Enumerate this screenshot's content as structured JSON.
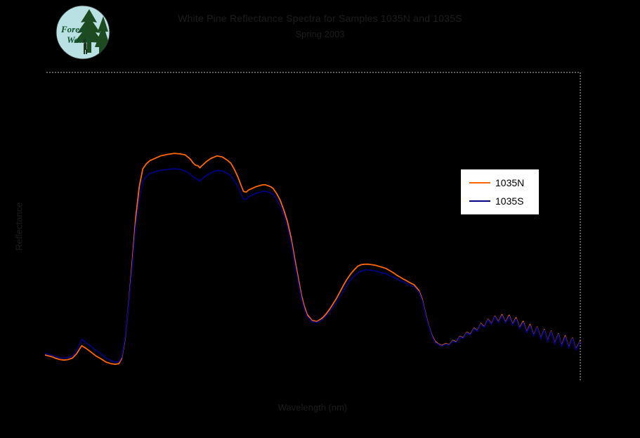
{
  "page": {
    "background_color": "#000000"
  },
  "logo": {
    "text_line1": "Forest",
    "text_line2": "Watch",
    "circle_color": "#b9e0e2",
    "tree_color": "#1d4a21",
    "figure_color": "#20331f",
    "text_color": "#14532d"
  },
  "title": {
    "line1": "White Pine Reflectance Spectra for Samples 1035N and 1035S",
    "line2": "Spring 2003",
    "text_color": "#1c1c1c"
  },
  "axes": {
    "x_label": "Wavelength (nm)",
    "y_label": "Reflectance",
    "label_color": "#1c1c1c",
    "border_color": "#b8b8b8"
  },
  "legend": {
    "background": "#ffffff",
    "border_color": "#000000",
    "entries": [
      {
        "label": "1035N",
        "color": "#ff6600"
      },
      {
        "label": "1035S",
        "color": "#000080"
      }
    ]
  },
  "chart_data": {
    "type": "line",
    "title": "White Pine Reflectance Spectra for Samples 1035N and 1035S",
    "subtitle": "Spring 2003",
    "xlabel": "Wavelength (nm)",
    "ylabel": "Reflectance",
    "x_range": [
      400,
      2500
    ],
    "y_range": [
      0,
      0.6
    ],
    "grid": false,
    "legend_position": "right-center",
    "series": [
      {
        "name": "1035N",
        "color": "#ff6600",
        "points": [
          [
            400,
            0.052
          ],
          [
            415,
            0.05
          ],
          [
            430,
            0.048
          ],
          [
            445,
            0.045
          ],
          [
            460,
            0.043
          ],
          [
            475,
            0.042
          ],
          [
            490,
            0.043
          ],
          [
            508,
            0.046
          ],
          [
            525,
            0.055
          ],
          [
            544,
            0.07
          ],
          [
            560,
            0.065
          ],
          [
            577,
            0.059
          ],
          [
            600,
            0.05
          ],
          [
            618,
            0.045
          ],
          [
            640,
            0.038
          ],
          [
            660,
            0.035
          ],
          [
            675,
            0.034
          ],
          [
            690,
            0.035
          ],
          [
            701,
            0.045
          ],
          [
            715,
            0.086
          ],
          [
            729,
            0.154
          ],
          [
            743,
            0.236
          ],
          [
            756,
            0.318
          ],
          [
            770,
            0.379
          ],
          [
            784,
            0.413
          ],
          [
            798,
            0.423
          ],
          [
            812,
            0.429
          ],
          [
            853,
            0.438
          ],
          [
            880,
            0.441
          ],
          [
            908,
            0.443
          ],
          [
            930,
            0.442
          ],
          [
            950,
            0.44
          ],
          [
            970,
            0.432
          ],
          [
            980,
            0.425
          ],
          [
            991,
            0.42
          ],
          [
            1000,
            0.419
          ],
          [
            1008,
            0.415
          ],
          [
            1013,
            0.418
          ],
          [
            1020,
            0.421
          ],
          [
            1033,
            0.427
          ],
          [
            1050,
            0.433
          ],
          [
            1074,
            0.438
          ],
          [
            1096,
            0.436
          ],
          [
            1115,
            0.43
          ],
          [
            1129,
            0.424
          ],
          [
            1143,
            0.412
          ],
          [
            1157,
            0.397
          ],
          [
            1170,
            0.38
          ],
          [
            1179,
            0.369
          ],
          [
            1190,
            0.368
          ],
          [
            1199,
            0.372
          ],
          [
            1213,
            0.375
          ],
          [
            1226,
            0.378
          ],
          [
            1240,
            0.38
          ],
          [
            1254,
            0.382
          ],
          [
            1265,
            0.382
          ],
          [
            1276,
            0.38
          ],
          [
            1286,
            0.378
          ],
          [
            1295,
            0.375
          ],
          [
            1309,
            0.365
          ],
          [
            1323,
            0.352
          ],
          [
            1337,
            0.333
          ],
          [
            1351,
            0.311
          ],
          [
            1365,
            0.28
          ],
          [
            1378,
            0.243
          ],
          [
            1392,
            0.205
          ],
          [
            1406,
            0.168
          ],
          [
            1417,
            0.147
          ],
          [
            1428,
            0.131
          ],
          [
            1447,
            0.119
          ],
          [
            1467,
            0.117
          ],
          [
            1489,
            0.124
          ],
          [
            1502,
            0.131
          ],
          [
            1516,
            0.14
          ],
          [
            1530,
            0.151
          ],
          [
            1544,
            0.162
          ],
          [
            1558,
            0.175
          ],
          [
            1572,
            0.188
          ],
          [
            1585,
            0.199
          ],
          [
            1599,
            0.209
          ],
          [
            1613,
            0.217
          ],
          [
            1627,
            0.224
          ],
          [
            1640,
            0.227
          ],
          [
            1654,
            0.228
          ],
          [
            1668,
            0.228
          ],
          [
            1682,
            0.227
          ],
          [
            1696,
            0.226
          ],
          [
            1710,
            0.224
          ],
          [
            1724,
            0.222
          ],
          [
            1737,
            0.22
          ],
          [
            1751,
            0.216
          ],
          [
            1765,
            0.212
          ],
          [
            1779,
            0.207
          ],
          [
            1793,
            0.203
          ],
          [
            1807,
            0.199
          ],
          [
            1815,
            0.197
          ],
          [
            1829,
            0.193
          ],
          [
            1848,
            0.188
          ],
          [
            1867,
            0.177
          ],
          [
            1880,
            0.16
          ],
          [
            1889,
            0.14
          ],
          [
            1899,
            0.12
          ],
          [
            1909,
            0.102
          ],
          [
            1920,
            0.088
          ],
          [
            1931,
            0.078
          ],
          [
            1944,
            0.073
          ],
          [
            1958,
            0.07
          ],
          [
            1972,
            0.074
          ],
          [
            1986,
            0.072
          ],
          [
            2000,
            0.08
          ],
          [
            2014,
            0.077
          ],
          [
            2027,
            0.088
          ],
          [
            2041,
            0.085
          ],
          [
            2055,
            0.096
          ],
          [
            2069,
            0.092
          ],
          [
            2083,
            0.104
          ],
          [
            2096,
            0.099
          ],
          [
            2110,
            0.113
          ],
          [
            2124,
            0.106
          ],
          [
            2138,
            0.121
          ],
          [
            2152,
            0.112
          ],
          [
            2165,
            0.127
          ],
          [
            2179,
            0.116
          ],
          [
            2193,
            0.13
          ],
          [
            2207,
            0.115
          ],
          [
            2221,
            0.129
          ],
          [
            2234,
            0.111
          ],
          [
            2248,
            0.124
          ],
          [
            2262,
            0.104
          ],
          [
            2276,
            0.117
          ],
          [
            2290,
            0.096
          ],
          [
            2303,
            0.111
          ],
          [
            2317,
            0.09
          ],
          [
            2331,
            0.106
          ],
          [
            2345,
            0.084
          ],
          [
            2359,
            0.101
          ],
          [
            2372,
            0.079
          ],
          [
            2386,
            0.098
          ],
          [
            2400,
            0.074
          ],
          [
            2414,
            0.093
          ],
          [
            2427,
            0.07
          ],
          [
            2441,
            0.089
          ],
          [
            2455,
            0.066
          ],
          [
            2469,
            0.085
          ],
          [
            2483,
            0.063
          ],
          [
            2500,
            0.079
          ]
        ]
      },
      {
        "name": "1035S",
        "color": "#000080",
        "points": [
          [
            400,
            0.055
          ],
          [
            415,
            0.053
          ],
          [
            430,
            0.051
          ],
          [
            445,
            0.048
          ],
          [
            460,
            0.046
          ],
          [
            475,
            0.046
          ],
          [
            490,
            0.047
          ],
          [
            508,
            0.05
          ],
          [
            525,
            0.061
          ],
          [
            544,
            0.082
          ],
          [
            560,
            0.076
          ],
          [
            577,
            0.07
          ],
          [
            600,
            0.061
          ],
          [
            618,
            0.055
          ],
          [
            640,
            0.046
          ],
          [
            660,
            0.041
          ],
          [
            675,
            0.038
          ],
          [
            690,
            0.039
          ],
          [
            701,
            0.048
          ],
          [
            715,
            0.089
          ],
          [
            729,
            0.151
          ],
          [
            743,
            0.225
          ],
          [
            756,
            0.301
          ],
          [
            770,
            0.356
          ],
          [
            784,
            0.389
          ],
          [
            798,
            0.398
          ],
          [
            812,
            0.404
          ],
          [
            853,
            0.41
          ],
          [
            880,
            0.412
          ],
          [
            908,
            0.413
          ],
          [
            930,
            0.412
          ],
          [
            950,
            0.409
          ],
          [
            970,
            0.403
          ],
          [
            980,
            0.398
          ],
          [
            991,
            0.394
          ],
          [
            1000,
            0.392
          ],
          [
            1008,
            0.389
          ],
          [
            1013,
            0.392
          ],
          [
            1020,
            0.395
          ],
          [
            1033,
            0.4
          ],
          [
            1050,
            0.405
          ],
          [
            1074,
            0.41
          ],
          [
            1096,
            0.409
          ],
          [
            1115,
            0.404
          ],
          [
            1129,
            0.4
          ],
          [
            1143,
            0.39
          ],
          [
            1157,
            0.379
          ],
          [
            1170,
            0.363
          ],
          [
            1179,
            0.354
          ],
          [
            1190,
            0.354
          ],
          [
            1199,
            0.359
          ],
          [
            1213,
            0.362
          ],
          [
            1226,
            0.365
          ],
          [
            1240,
            0.367
          ],
          [
            1254,
            0.369
          ],
          [
            1265,
            0.369
          ],
          [
            1276,
            0.368
          ],
          [
            1286,
            0.366
          ],
          [
            1295,
            0.363
          ],
          [
            1309,
            0.354
          ],
          [
            1323,
            0.341
          ],
          [
            1337,
            0.323
          ],
          [
            1351,
            0.3
          ],
          [
            1365,
            0.27
          ],
          [
            1378,
            0.233
          ],
          [
            1392,
            0.196
          ],
          [
            1406,
            0.161
          ],
          [
            1417,
            0.141
          ],
          [
            1428,
            0.127
          ],
          [
            1447,
            0.117
          ],
          [
            1467,
            0.115
          ],
          [
            1489,
            0.121
          ],
          [
            1502,
            0.127
          ],
          [
            1516,
            0.135
          ],
          [
            1530,
            0.145
          ],
          [
            1544,
            0.154
          ],
          [
            1558,
            0.166
          ],
          [
            1572,
            0.177
          ],
          [
            1585,
            0.188
          ],
          [
            1599,
            0.198
          ],
          [
            1613,
            0.205
          ],
          [
            1627,
            0.211
          ],
          [
            1640,
            0.214
          ],
          [
            1654,
            0.217
          ],
          [
            1668,
            0.217
          ],
          [
            1682,
            0.216
          ],
          [
            1696,
            0.215
          ],
          [
            1710,
            0.213
          ],
          [
            1724,
            0.211
          ],
          [
            1737,
            0.21
          ],
          [
            1751,
            0.206
          ],
          [
            1765,
            0.203
          ],
          [
            1779,
            0.2
          ],
          [
            1793,
            0.196
          ],
          [
            1807,
            0.193
          ],
          [
            1815,
            0.192
          ],
          [
            1829,
            0.188
          ],
          [
            1848,
            0.184
          ],
          [
            1867,
            0.174
          ],
          [
            1880,
            0.157
          ],
          [
            1889,
            0.138
          ],
          [
            1899,
            0.118
          ],
          [
            1909,
            0.101
          ],
          [
            1920,
            0.086
          ],
          [
            1931,
            0.076
          ],
          [
            1944,
            0.072
          ],
          [
            1958,
            0.069
          ],
          [
            1972,
            0.073
          ],
          [
            1986,
            0.071
          ],
          [
            2000,
            0.079
          ],
          [
            2014,
            0.076
          ],
          [
            2027,
            0.087
          ],
          [
            2041,
            0.084
          ],
          [
            2055,
            0.095
          ],
          [
            2069,
            0.091
          ],
          [
            2083,
            0.103
          ],
          [
            2096,
            0.098
          ],
          [
            2110,
            0.112
          ],
          [
            2124,
            0.105
          ],
          [
            2138,
            0.12
          ],
          [
            2152,
            0.111
          ],
          [
            2165,
            0.126
          ],
          [
            2179,
            0.115
          ],
          [
            2193,
            0.128
          ],
          [
            2207,
            0.114
          ],
          [
            2221,
            0.127
          ],
          [
            2234,
            0.11
          ],
          [
            2248,
            0.122
          ],
          [
            2262,
            0.103
          ],
          [
            2276,
            0.115
          ],
          [
            2290,
            0.095
          ],
          [
            2303,
            0.109
          ],
          [
            2317,
            0.089
          ],
          [
            2331,
            0.105
          ],
          [
            2345,
            0.083
          ],
          [
            2359,
            0.1
          ],
          [
            2372,
            0.078
          ],
          [
            2386,
            0.097
          ],
          [
            2400,
            0.073
          ],
          [
            2414,
            0.092
          ],
          [
            2427,
            0.069
          ],
          [
            2441,
            0.087
          ],
          [
            2455,
            0.065
          ],
          [
            2469,
            0.084
          ],
          [
            2483,
            0.062
          ],
          [
            2500,
            0.078
          ]
        ]
      }
    ]
  }
}
